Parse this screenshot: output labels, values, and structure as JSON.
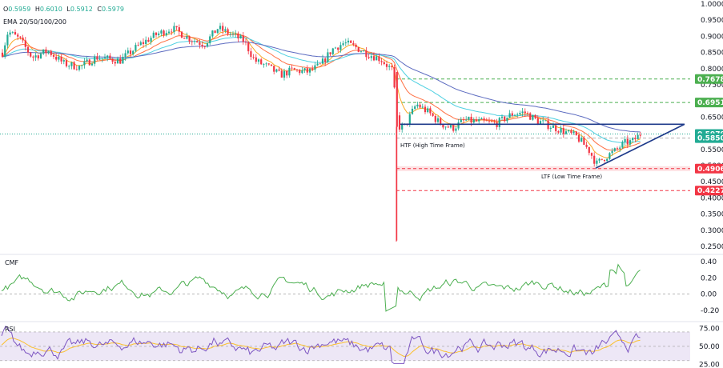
{
  "header": {
    "ohlc": {
      "o_label": "O",
      "o": "0.5959",
      "h_label": "H",
      "h": "0.6010",
      "l_label": "L",
      "l": "0.5912",
      "c_label": "C",
      "c": "0.5979"
    },
    "ema_label": "EMA 20/50/100/200"
  },
  "annotations": {
    "htf": "HTF (High Time Frame)",
    "ltf": "LTF (Low Time Frame)"
  },
  "indicators": {
    "cmf_label": "CMF",
    "rsi_label": "RSI"
  },
  "colors": {
    "up": "#22ab94",
    "down": "#f23645",
    "ema20": "#f9a825",
    "ema50": "#ff7043",
    "ema100": "#4dd0e1",
    "ema200": "#5c6bc0",
    "trendline": "#1e3a8a",
    "cmf": "#4caf50",
    "rsi": "#7e57c2",
    "rsi_ma": "#fbc02d",
    "rsi_band": "#ede7f6",
    "green_tag": "#4caf50",
    "red_tag": "#f23645",
    "last_tag": "#22ab94"
  },
  "chart_data": [
    {
      "type": "candlestick",
      "yaxis": {
        "ticks": [
          "1.0000",
          "0.9500",
          "0.9000",
          "0.8500",
          "0.8000",
          "0.7500",
          "0.7000",
          "0.6500",
          "0.6000",
          "0.5500",
          "0.5000",
          "0.4500",
          "0.4000",
          "0.3500",
          "0.3000",
          "0.2500"
        ],
        "ylim": [
          0.245,
          1.0
        ]
      },
      "levels": [
        {
          "label": "0.7678",
          "value": 0.7678,
          "style": "green-dashed"
        },
        {
          "label": "0.6951",
          "value": 0.6951,
          "style": "green-dashed"
        },
        {
          "label": "0.5979",
          "value": 0.5979,
          "style": "last-price-dotted"
        },
        {
          "label": "0.5850",
          "value": 0.585,
          "style": "grey-dashed"
        },
        {
          "label": "0.4906",
          "value": 0.4906,
          "style": "red-zone"
        },
        {
          "label": "0.4227",
          "value": 0.4227,
          "style": "red-dashed"
        }
      ],
      "triangle": {
        "apex_value": 0.628,
        "upper_start_value": 0.628,
        "lower_start_value": 0.492
      },
      "series": [
        {
          "name": "EMA 20"
        },
        {
          "name": "EMA 50"
        },
        {
          "name": "EMA 100"
        },
        {
          "name": "EMA 200"
        }
      ]
    },
    {
      "type": "line",
      "name": "CMF",
      "yaxis": {
        "ticks": [
          "0.40",
          "0.20",
          "0.00",
          "-0.20"
        ],
        "ylim": [
          -0.3,
          0.45
        ]
      },
      "zero_line": 0.0
    },
    {
      "type": "line",
      "name": "RSI",
      "yaxis": {
        "ticks": [
          "75.00",
          "50.00",
          "25.00"
        ],
        "ylim": [
          22,
          80
        ]
      },
      "band": [
        30,
        70
      ]
    }
  ]
}
